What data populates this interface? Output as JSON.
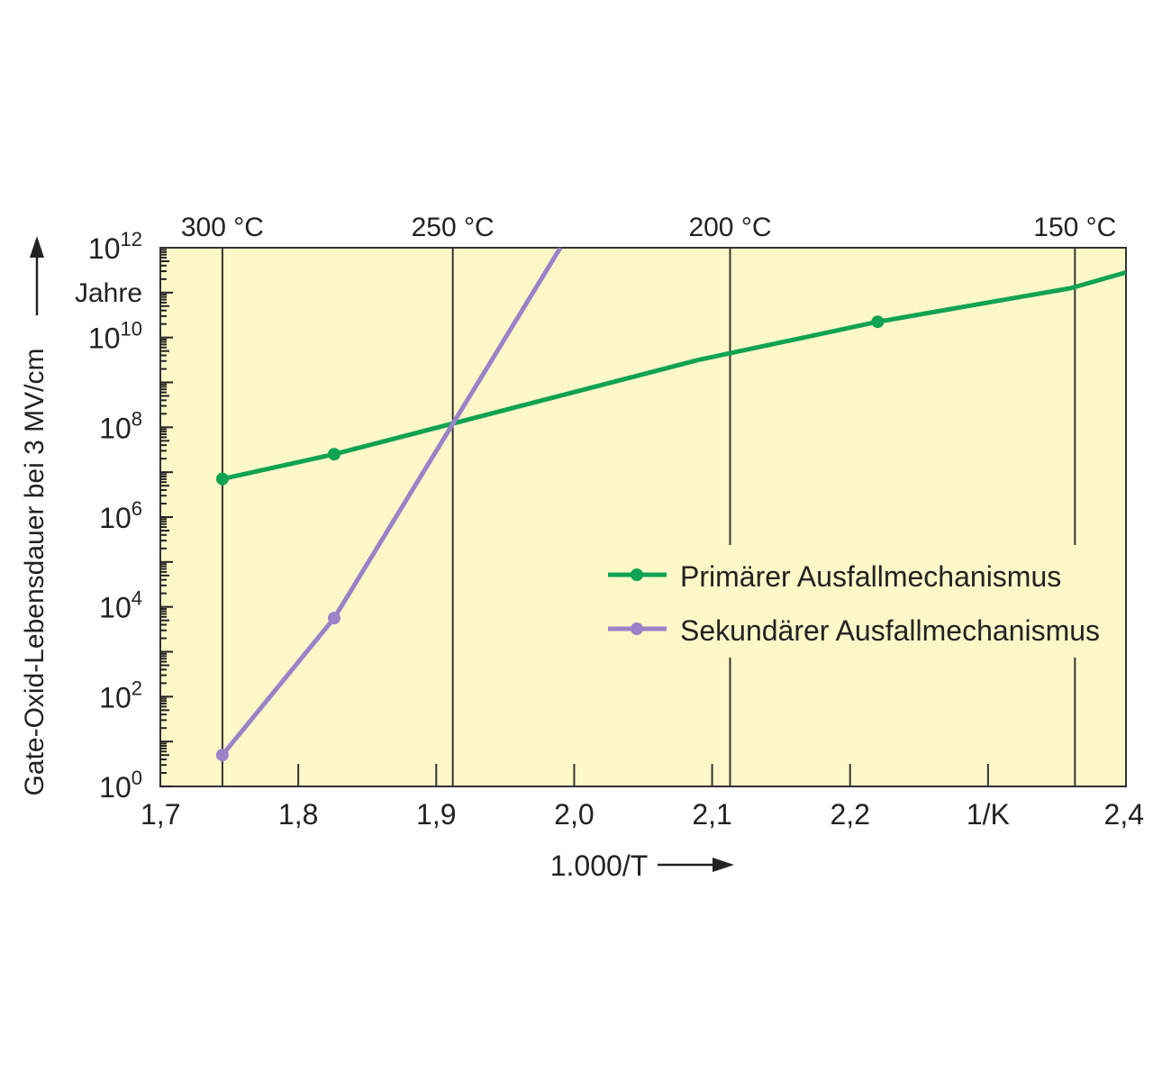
{
  "chart_data": {
    "type": "line",
    "x_scale": "linear",
    "y_scale": "log",
    "xlim": [
      1.7,
      2.4
    ],
    "ylim_exponent": [
      0,
      12
    ],
    "x_ticks": [
      {
        "value": 1.7,
        "label": "1,7"
      },
      {
        "value": 1.8,
        "label": "1,8"
      },
      {
        "value": 1.9,
        "label": "1,9"
      },
      {
        "value": 2.0,
        "label": "2,0"
      },
      {
        "value": 2.1,
        "label": "2,1"
      },
      {
        "value": 2.2,
        "label": "2,2"
      },
      {
        "value": 2.3,
        "label": "1/K"
      },
      {
        "value": 2.4,
        "label": "2,4"
      }
    ],
    "y_ticks": [
      {
        "exp": 0,
        "base": "10",
        "sup": "0"
      },
      {
        "exp": 2,
        "base": "10",
        "sup": "2"
      },
      {
        "exp": 4,
        "base": "10",
        "sup": "4"
      },
      {
        "exp": 6,
        "base": "10",
        "sup": "6"
      },
      {
        "exp": 8,
        "base": "10",
        "sup": "8"
      },
      {
        "exp": 10,
        "base": "10",
        "sup": "10"
      },
      {
        "exp": 12,
        "base": "10",
        "sup": "12"
      }
    ],
    "y_unit": "Jahre",
    "top_axis_ticks": [
      {
        "value": 1.745,
        "label": "300 °C"
      },
      {
        "value": 1.912,
        "label": "250 °C"
      },
      {
        "value": 2.113,
        "label": "200 °C"
      },
      {
        "value": 2.363,
        "label": "150 °C"
      }
    ],
    "xlabel": "1.000/T",
    "ylabel": "Gate-Oxid-Lebensdauer bei 3 MV/cm",
    "series": [
      {
        "name": "Primärer Ausfallmechanismus",
        "color": "#10a352",
        "points": [
          {
            "x": 1.745,
            "exp": 6.85
          },
          {
            "x": 1.826,
            "exp": 7.4
          },
          {
            "x": 2.09,
            "exp": 9.5
          },
          {
            "x": 2.22,
            "exp": 10.35
          },
          {
            "x": 2.36,
            "exp": 11.1
          },
          {
            "x": 2.4,
            "exp": 11.45
          }
        ],
        "markers": [
          {
            "x": 1.745,
            "exp": 6.85
          },
          {
            "x": 1.826,
            "exp": 7.4
          },
          {
            "x": 2.22,
            "exp": 10.35
          }
        ]
      },
      {
        "name": "Sekundärer Ausfallmechanismus",
        "color": "#9b82c9",
        "points": [
          {
            "x": 1.745,
            "exp": 0.7
          },
          {
            "x": 1.826,
            "exp": 3.75
          },
          {
            "x": 1.99,
            "exp": 12.0
          }
        ],
        "markers": [
          {
            "x": 1.745,
            "exp": 0.7
          },
          {
            "x": 1.826,
            "exp": 3.75
          }
        ]
      }
    ],
    "legend_position": "center-right",
    "grid": "vertical lines at isotherms",
    "colors": {
      "plot_background": "#fdf8c8",
      "frame": "#333333"
    }
  }
}
